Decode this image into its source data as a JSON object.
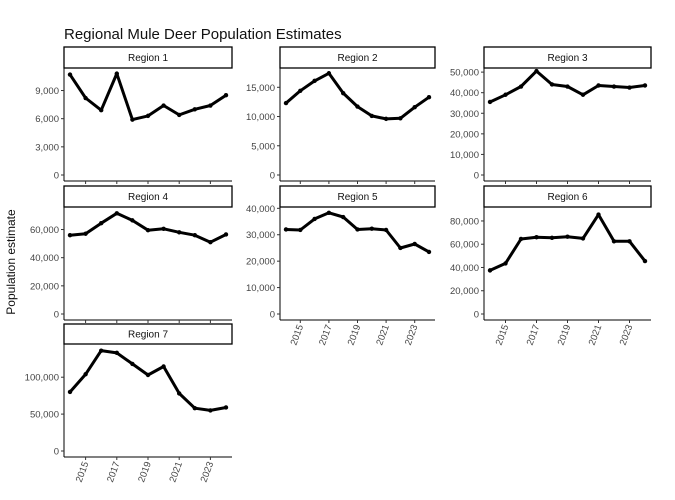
{
  "chart_data": {
    "type": "line",
    "title": "Regional Mule Deer Population Estimates",
    "xlabel": "",
    "ylabel": "Population estimate",
    "x": [
      2014,
      2015,
      2016,
      2017,
      2018,
      2019,
      2020,
      2021,
      2022,
      2023,
      2024
    ],
    "x_ticks": [
      2015,
      2017,
      2019,
      2021,
      2023
    ],
    "panels": [
      {
        "name": "Region 1",
        "ylim": [
          0,
          11400
        ],
        "yticks": [
          0,
          3000,
          6000,
          9000
        ],
        "tick_labels": [
          "0",
          "3,000",
          "6,000",
          "9,000"
        ],
        "show_x_axis": false,
        "values": [
          10700,
          8200,
          6900,
          10800,
          5900,
          6300,
          7400,
          6400,
          7000,
          7400,
          8500
        ]
      },
      {
        "name": "Region 2",
        "ylim": [
          0,
          18300
        ],
        "yticks": [
          0,
          5000,
          10000,
          15000
        ],
        "tick_labels": [
          "0",
          "5,000",
          "10,000",
          "15,000"
        ],
        "show_x_axis": false,
        "values": [
          12300,
          14400,
          16100,
          17400,
          14000,
          11700,
          10100,
          9600,
          9700,
          11600,
          13300
        ]
      },
      {
        "name": "Region 3",
        "ylim": [
          0,
          52000
        ],
        "yticks": [
          0,
          10000,
          20000,
          30000,
          40000,
          50000
        ],
        "tick_labels": [
          "0",
          "10,000",
          "20,000",
          "30,000",
          "40,000",
          "50,000"
        ],
        "show_x_axis": false,
        "values": [
          35500,
          39000,
          43000,
          50500,
          44000,
          43000,
          39000,
          43500,
          43000,
          42500,
          43500
        ]
      },
      {
        "name": "Region 4",
        "ylim": [
          0,
          76000
        ],
        "yticks": [
          0,
          20000,
          40000,
          60000
        ],
        "tick_labels": [
          "0",
          "20,000",
          "40,000",
          "60,000"
        ],
        "show_x_axis": false,
        "values": [
          56000,
          57000,
          64500,
          71500,
          66500,
          59500,
          60500,
          58000,
          56000,
          51000,
          56500
        ]
      },
      {
        "name": "Region 5",
        "ylim": [
          0,
          40500
        ],
        "yticks": [
          0,
          10000,
          20000,
          30000,
          40000
        ],
        "tick_labels": [
          "0",
          "10,000",
          "20,000",
          "30,000",
          "40,000"
        ],
        "show_x_axis": true,
        "values": [
          32000,
          31800,
          36000,
          38300,
          36700,
          32000,
          32300,
          31800,
          25000,
          26500,
          23500
        ]
      },
      {
        "name": "Region 6",
        "ylim": [
          0,
          92000
        ],
        "yticks": [
          0,
          20000,
          40000,
          60000,
          80000
        ],
        "tick_labels": [
          "0",
          "20,000",
          "40,000",
          "60,000",
          "80,000"
        ],
        "show_x_axis": true,
        "values": [
          37500,
          43500,
          64500,
          66000,
          65500,
          66500,
          65000,
          85500,
          62500,
          62500,
          45500
        ]
      },
      {
        "name": "Region 7",
        "ylim": [
          0,
          145000
        ],
        "yticks": [
          0,
          50000,
          100000
        ],
        "tick_labels": [
          "0",
          "50,000",
          "100,000"
        ],
        "show_x_axis": true,
        "values": [
          80000,
          104000,
          136000,
          133000,
          118000,
          103000,
          114500,
          78000,
          58000,
          55000,
          59000
        ]
      }
    ]
  }
}
